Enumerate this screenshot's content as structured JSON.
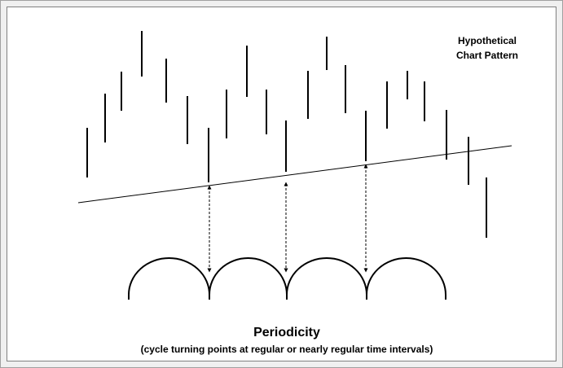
{
  "label": {
    "line1": "Hypothetical",
    "line2": "Chart Pattern"
  },
  "caption": {
    "title": "Periodicity",
    "subtitle": "(cycle turning points at regular or nearly regular time intervals)"
  }
}
